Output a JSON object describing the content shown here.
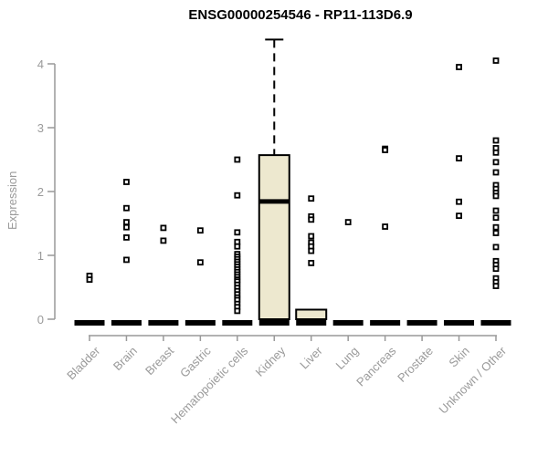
{
  "chart_data": {
    "type": "boxplot-scatter",
    "title": "ENSG00000254546 - RP11-113D6.9",
    "ylabel": "Expression",
    "yticks": [
      0,
      1,
      2,
      3,
      4
    ],
    "ylim": [
      0,
      4.4
    ],
    "grid": false,
    "colors": {
      "box_fill": "#EDE8CF",
      "box_border": "#000000",
      "axis": "#999999",
      "label": "#9a9a9a",
      "title": "#000000"
    },
    "categories": [
      "Bladder",
      "Brain",
      "Breast",
      "Gastric",
      "Hematopoietic cells",
      "Kidney",
      "Liver",
      "Lung",
      "Pancreas",
      "Prostate",
      "Skin",
      "Unknown / Other"
    ],
    "boxes": [
      {
        "median": 0
      },
      {
        "median": 0
      },
      {
        "median": 0
      },
      {
        "median": 0
      },
      {
        "median": 0
      },
      {
        "q1": 0,
        "median": 1.88,
        "q3": 2.57,
        "whisker_high": 4.38
      },
      {
        "q1": 0,
        "median": 0,
        "q3": 0.15
      },
      {
        "median": 0
      },
      {
        "median": 0
      },
      {
        "median": 0
      },
      {
        "median": 0
      },
      {
        "median": 0
      }
    ],
    "points": [
      [
        0.68,
        0.62
      ],
      [
        2.15,
        1.74,
        1.52,
        1.44,
        1.28,
        0.93
      ],
      [
        1.43,
        1.23
      ],
      [
        1.39,
        0.89
      ],
      [
        2.5,
        1.94,
        1.36,
        1.21,
        1.14,
        1.02,
        0.98,
        0.94,
        0.9,
        0.86,
        0.82,
        0.78,
        0.74,
        0.7,
        0.66,
        0.62,
        0.59,
        0.54,
        0.49,
        0.44,
        0.39,
        0.34,
        0.3,
        0.24,
        0.19,
        0.13
      ],
      [],
      [
        1.89,
        1.61,
        1.56,
        1.3,
        1.2,
        1.14,
        1.07,
        0.88
      ],
      [
        1.52
      ],
      [
        2.67,
        2.65,
        1.45
      ],
      [],
      [
        3.95,
        2.52,
        1.84,
        1.62
      ],
      [
        4.05,
        2.8,
        2.68,
        2.61,
        2.46,
        2.3,
        2.1,
        2.04,
        1.98,
        1.93,
        1.7,
        1.59,
        1.44,
        1.35,
        1.13,
        0.91,
        0.85,
        0.79,
        0.64,
        0.58,
        0.52
      ]
    ]
  }
}
